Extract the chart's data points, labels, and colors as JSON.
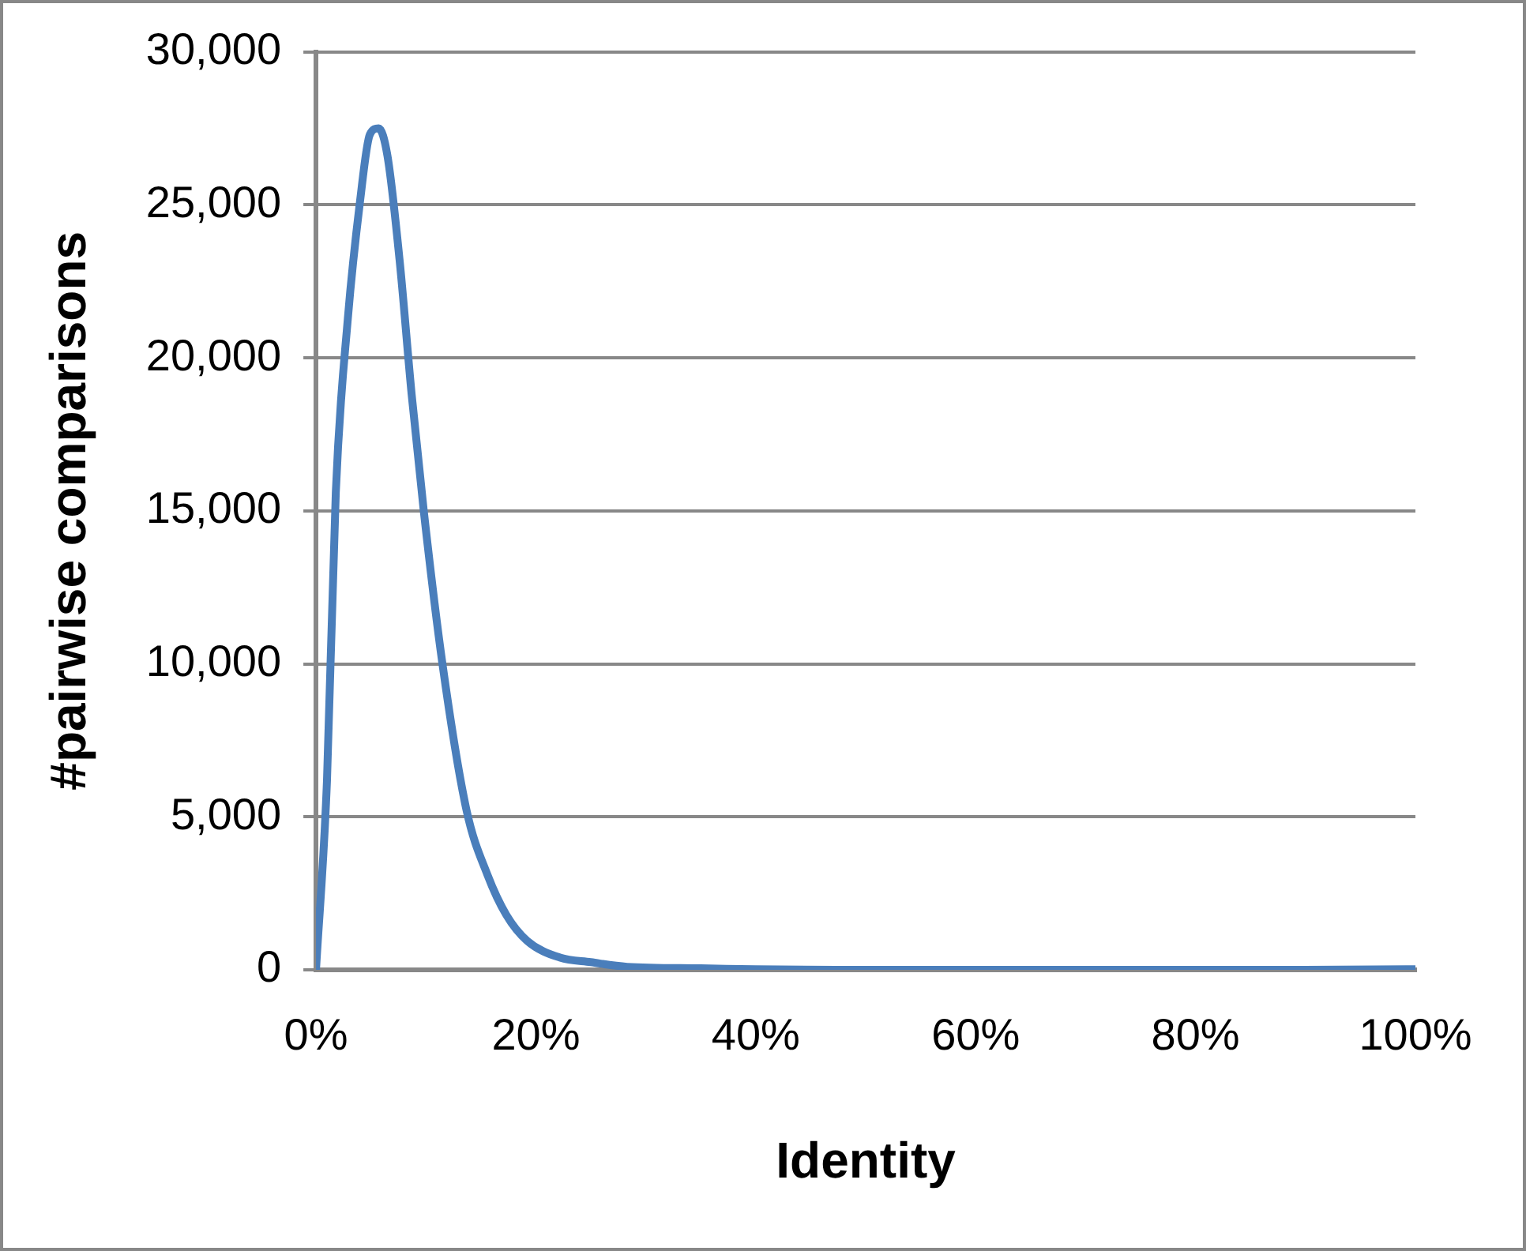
{
  "chart_data": {
    "type": "line",
    "xlabel": "Identity",
    "ylabel": "#pairwise comparisons",
    "x": [
      0,
      1.0,
      1.8,
      2.9,
      4.0,
      4.9,
      5.7,
      6.5,
      7.6,
      8.7,
      9.8,
      11.5,
      13.7,
      15.6,
      17.3,
      19.2,
      22.2,
      25,
      28.3,
      35,
      40,
      50,
      60,
      70,
      80,
      90,
      100
    ],
    "series": [
      {
        "color": "#4a7ebb",
        "values": [
          0,
          6200,
          15600,
          21300,
          25100,
          27300,
          27500,
          26600,
          23200,
          18800,
          15000,
          10000,
          5200,
          3100,
          1800,
          950,
          400,
          250,
          100,
          50,
          20,
          0,
          0,
          0,
          0,
          0,
          20
        ]
      }
    ],
    "xlim": [
      0,
      100
    ],
    "xticks": [
      {
        "value": 0,
        "label": "0%"
      },
      {
        "value": 20,
        "label": "20%"
      },
      {
        "value": 40,
        "label": "40%"
      },
      {
        "value": 60,
        "label": "60%"
      },
      {
        "value": 80,
        "label": "80%"
      },
      {
        "value": 100,
        "label": "100%"
      }
    ],
    "ylim": [
      0,
      30000
    ],
    "yticks": [
      0,
      {
        "value": 5000,
        "label": "5,000"
      },
      {
        "value": 10000,
        "label": "10,000"
      },
      {
        "value": 15000,
        "label": "15,000"
      },
      {
        "value": 20000,
        "label": "20,000"
      },
      {
        "value": 25000,
        "label": "25,000"
      },
      {
        "value": 30000,
        "label": "30,000"
      }
    ],
    "grid": "y",
    "legend": false,
    "marker": "none",
    "line_style": "solid"
  }
}
